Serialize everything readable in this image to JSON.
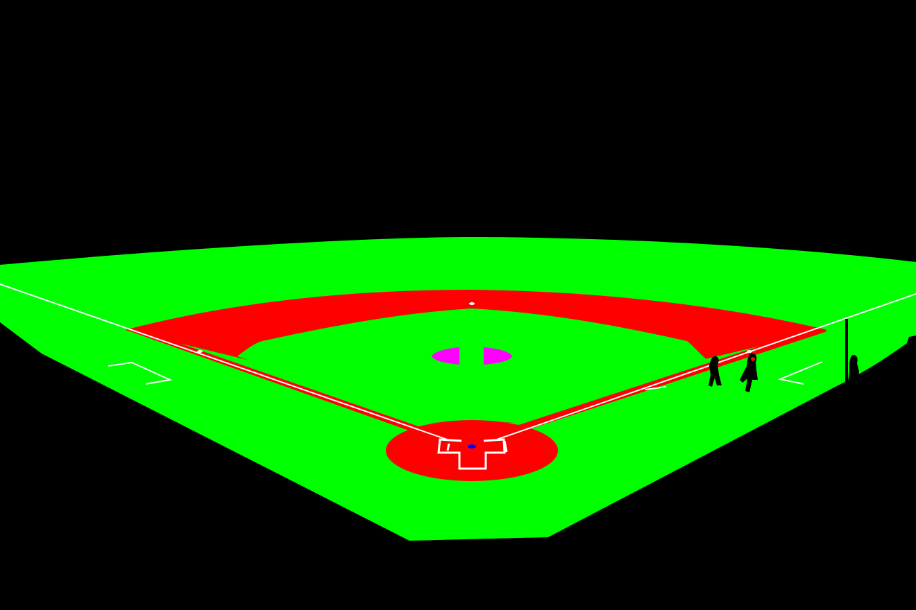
{
  "segmentation": {
    "classes": [
      {
        "name": "grass",
        "color": "#00ff00"
      },
      {
        "name": "dirt",
        "color": "#ff0000"
      },
      {
        "name": "line",
        "color": "#ffffff"
      },
      {
        "name": "mound",
        "color": "#ff00ff"
      },
      {
        "name": "plate",
        "color": "#0000ff"
      },
      {
        "name": "person",
        "color": "#000000"
      },
      {
        "name": "background",
        "color": "#000000"
      }
    ]
  }
}
